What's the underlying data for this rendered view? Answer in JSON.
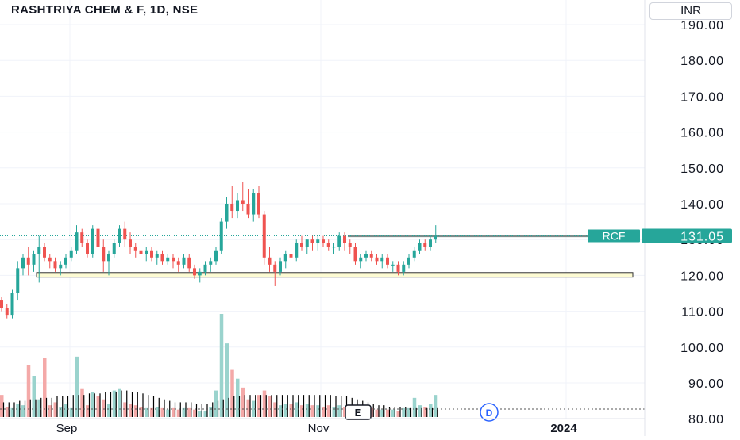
{
  "header": {
    "title": "RASHTRIYA CHEM & F, 1D, NSE",
    "currency": "INR"
  },
  "colors": {
    "up": "#26a69a",
    "down": "#ef5350",
    "grid": "#f0f3fa",
    "axis_text": "#131722",
    "volume_ma": "#000000",
    "support_zone": "#fdfbd3"
  },
  "chart_data": {
    "type": "candlestick",
    "title": "RASHTRIYA CHEM & F, 1D, NSE",
    "y_axis": {
      "ticks": [
        "190.00",
        "180.00",
        "170.00",
        "160.00",
        "150.00",
        "140.00",
        "130.00",
        "120.00",
        "110.00",
        "100.00",
        "90.00",
        "80.00"
      ],
      "range": [
        80,
        195
      ]
    },
    "x_axis": {
      "labels": [
        "Sep",
        "Nov",
        "2024"
      ]
    },
    "grid": true,
    "last_price": {
      "symbol": "RCF",
      "value": "131.05"
    },
    "resistance_line": 131.0,
    "support_zone": [
      119.5,
      120.8
    ],
    "markers": [
      "E",
      "D"
    ],
    "series": [
      {
        "ohlc": [
          [
            113,
            114,
            110,
            111
          ],
          [
            111,
            112,
            108,
            109
          ],
          [
            109,
            116,
            108,
            115
          ],
          [
            115,
            124,
            113,
            122
          ],
          [
            122,
            126,
            120,
            125
          ],
          [
            125,
            128,
            120,
            123
          ],
          [
            123,
            127,
            121,
            126
          ],
          [
            126,
            131,
            118,
            128
          ],
          [
            128,
            129,
            124,
            125
          ],
          [
            125,
            126,
            122,
            124
          ],
          [
            124,
            125,
            121,
            122
          ],
          [
            122,
            124,
            120,
            123
          ],
          [
            123,
            126,
            122,
            125
          ],
          [
            125,
            128,
            124,
            127
          ],
          [
            127,
            134,
            126,
            132
          ],
          [
            132,
            133,
            128,
            129
          ],
          [
            129,
            130,
            125,
            126
          ],
          [
            126,
            134,
            125,
            133
          ],
          [
            133,
            135,
            126,
            128
          ],
          [
            128,
            130,
            121,
            124
          ],
          [
            124,
            127,
            120,
            126
          ],
          [
            126,
            130,
            125,
            129
          ],
          [
            129,
            134,
            128,
            133
          ],
          [
            133,
            135,
            128,
            130
          ],
          [
            130,
            132,
            126,
            128
          ],
          [
            128,
            129,
            125,
            127
          ],
          [
            127,
            128,
            124,
            126
          ],
          [
            126,
            128,
            124,
            127
          ],
          [
            127,
            128,
            124,
            125
          ],
          [
            125,
            127,
            123,
            126
          ],
          [
            126,
            127,
            123,
            124
          ],
          [
            124,
            126,
            123,
            125
          ],
          [
            125,
            126,
            122,
            124
          ],
          [
            124,
            125,
            121,
            123
          ],
          [
            123,
            126,
            122,
            125
          ],
          [
            125,
            126,
            121,
            122
          ],
          [
            122,
            123,
            119,
            120
          ],
          [
            120,
            122,
            118,
            121
          ],
          [
            121,
            124,
            120,
            123
          ],
          [
            123,
            125,
            121,
            124
          ],
          [
            124,
            128,
            123,
            127
          ],
          [
            127,
            136,
            126,
            135
          ],
          [
            135,
            142,
            133,
            140
          ],
          [
            140,
            145,
            136,
            138
          ],
          [
            138,
            143,
            136,
            141
          ],
          [
            141,
            146,
            138,
            140
          ],
          [
            140,
            144,
            136,
            137
          ],
          [
            137,
            144,
            135,
            143
          ],
          [
            143,
            145,
            136,
            137
          ],
          [
            137,
            138,
            123,
            125
          ],
          [
            125,
            128,
            121,
            123
          ],
          [
            123,
            124,
            117,
            121
          ],
          [
            121,
            125,
            120,
            124
          ],
          [
            124,
            127,
            122,
            126
          ],
          [
            126,
            128,
            124,
            125
          ],
          [
            125,
            130,
            124,
            129
          ],
          [
            129,
            131,
            127,
            128
          ],
          [
            128,
            130,
            126,
            130
          ],
          [
            130,
            131,
            127,
            129
          ],
          [
            129,
            131,
            127,
            130
          ],
          [
            130,
            131,
            128,
            129
          ],
          [
            129,
            130,
            127,
            128
          ],
          [
            128,
            129,
            126,
            128
          ],
          [
            128,
            132,
            127,
            131
          ],
          [
            131,
            132,
            127,
            129
          ],
          [
            129,
            130,
            126,
            128
          ],
          [
            128,
            129,
            123,
            124
          ],
          [
            124,
            126,
            122,
            125
          ],
          [
            125,
            127,
            124,
            126
          ],
          [
            126,
            127,
            124,
            125
          ],
          [
            125,
            126,
            123,
            124
          ],
          [
            124,
            126,
            122,
            125
          ],
          [
            125,
            126,
            122,
            123
          ],
          [
            123,
            124,
            121,
            123
          ],
          [
            123,
            124,
            120,
            121
          ],
          [
            121,
            124,
            120,
            123
          ],
          [
            123,
            126,
            122,
            125
          ],
          [
            125,
            128,
            124,
            127
          ],
          [
            127,
            130,
            126,
            129
          ],
          [
            129,
            130,
            127,
            128
          ],
          [
            128,
            131,
            127,
            130
          ],
          [
            130,
            134,
            129,
            131
          ]
        ]
      },
      {
        "name": "Volume",
        "values": [
          15,
          7,
          6,
          9,
          8,
          35,
          28,
          12,
          40,
          8,
          10,
          7,
          9,
          6,
          41,
          19,
          8,
          17,
          14,
          12,
          9,
          18,
          19,
          10,
          9,
          8,
          7,
          6,
          6,
          7,
          6,
          5,
          6,
          5,
          6,
          6,
          5,
          4,
          4,
          7,
          18,
          70,
          50,
          32,
          26,
          20,
          12,
          11,
          15,
          18,
          14,
          10,
          8,
          9,
          9,
          10,
          8,
          9,
          8,
          8,
          7,
          8,
          7,
          8,
          7,
          6,
          5,
          8,
          7,
          6,
          5,
          5,
          5,
          5,
          4,
          6,
          6,
          13,
          8,
          7,
          9,
          15
        ]
      },
      {
        "name": "Volume MA",
        "values": [
          10,
          10,
          10,
          11,
          11,
          12,
          12,
          13,
          13,
          13,
          14,
          14,
          14,
          15,
          15,
          15,
          16,
          16,
          16,
          17,
          17,
          17,
          18,
          18,
          17,
          17,
          16,
          15,
          14,
          13,
          12,
          11,
          10,
          10,
          10,
          10,
          9,
          9,
          9,
          10,
          11,
          12,
          13,
          14,
          14,
          15,
          15,
          15,
          15,
          15,
          15,
          15,
          15,
          15,
          15,
          15,
          15,
          15,
          15,
          15,
          15,
          15,
          14,
          14,
          14,
          13,
          12,
          11,
          10,
          9,
          8,
          8,
          7,
          7,
          7,
          7,
          6,
          6,
          6,
          6,
          6,
          6
        ]
      }
    ]
  }
}
